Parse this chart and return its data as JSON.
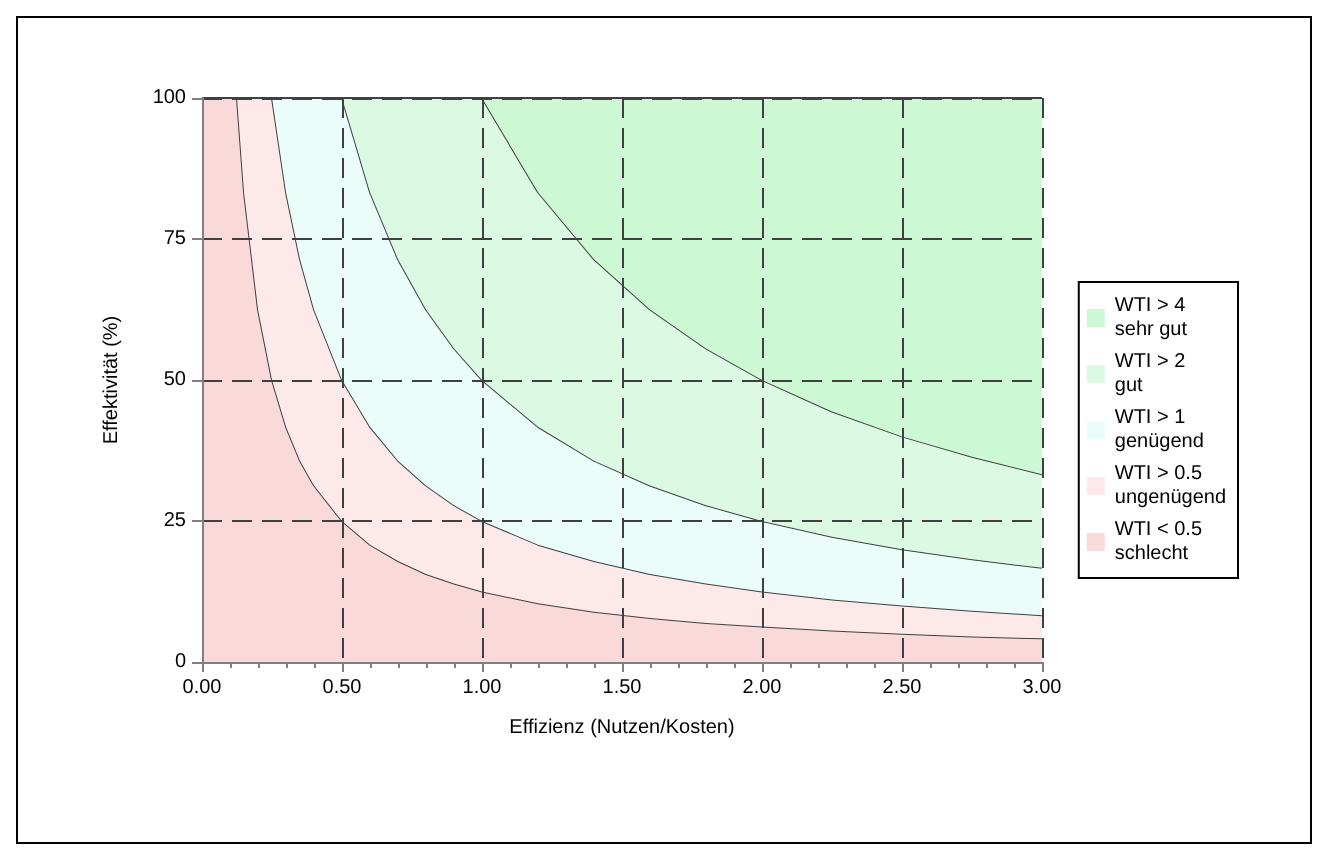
{
  "chart_data": {
    "type": "area",
    "stacked": true,
    "xlabel": "Effizienz (Nutzen/Kosten)",
    "ylabel": "Effektivität (%)",
    "x": [
      0,
      0.125,
      0.15,
      0.2,
      0.25,
      0.3,
      0.35,
      0.4,
      0.5,
      0.6,
      0.7,
      0.8,
      0.9,
      1,
      1.2,
      1.4,
      1.6,
      1.8,
      2,
      2.25,
      2.5,
      2.75,
      3
    ],
    "series": [
      {
        "name": "WTI < 0.5\nschlecht",
        "color": "#f9d9da",
        "values": [
          100,
          100,
          83.3,
          62.5,
          50,
          41.7,
          35.7,
          31.3,
          25,
          20.8,
          17.9,
          15.6,
          13.9,
          12.5,
          10.4,
          8.9,
          7.8,
          6.9,
          6.3,
          5.6,
          5,
          4.5,
          4.2
        ]
      },
      {
        "name": "WTI > 0.5\nungenügend",
        "color": "#fde9ea",
        "values": [
          0,
          0,
          16.7,
          37.5,
          50,
          41.6,
          35.7,
          31.2,
          25,
          20.9,
          17.8,
          15.7,
          13.9,
          12.5,
          10.4,
          9,
          7.8,
          7,
          6.2,
          5.5,
          5,
          4.6,
          4.1
        ]
      },
      {
        "name": "WTI > 1\ngenügend",
        "color": "#ebfdf8",
        "values": [
          0,
          0,
          0,
          0,
          0,
          16.7,
          28.6,
          37.5,
          50,
          41.6,
          35.7,
          31.2,
          27.8,
          25,
          20.9,
          17.8,
          15.7,
          13.9,
          12.5,
          11.1,
          10,
          9.1,
          8.4
        ]
      },
      {
        "name": "WTI > 2\ngut",
        "color": "#dcf9e3",
        "values": [
          0,
          0,
          0,
          0,
          0,
          0,
          0,
          0,
          0,
          16.7,
          28.6,
          37.5,
          44.4,
          50,
          41.6,
          35.7,
          31.2,
          27.8,
          25,
          22.2,
          20,
          18.2,
          16.6
        ]
      },
      {
        "name": "WTI > 4\nsehr gut",
        "color": "#ccf9d4",
        "values": [
          0,
          0,
          0,
          0,
          0,
          0,
          0,
          0,
          0,
          0,
          0,
          0,
          0,
          0,
          16.7,
          28.6,
          37.5,
          44.4,
          50,
          55.6,
          60,
          63.6,
          66.7
        ]
      }
    ],
    "xlim": [
      0,
      3
    ],
    "xticks": [
      {
        "value": 0,
        "label": "0.00"
      },
      {
        "value": 0.5,
        "label": "0.50"
      },
      {
        "value": 1,
        "label": "1.00"
      },
      {
        "value": 1.5,
        "label": "1.50"
      },
      {
        "value": 2,
        "label": "2.00"
      },
      {
        "value": 2.5,
        "label": "2.50"
      },
      {
        "value": 3,
        "label": "3.00"
      }
    ],
    "ylim": [
      0,
      100
    ],
    "yticks": [
      0,
      25,
      50,
      75,
      100
    ],
    "grid": true,
    "legend": "right",
    "marker": "none",
    "line_style": "solid"
  }
}
